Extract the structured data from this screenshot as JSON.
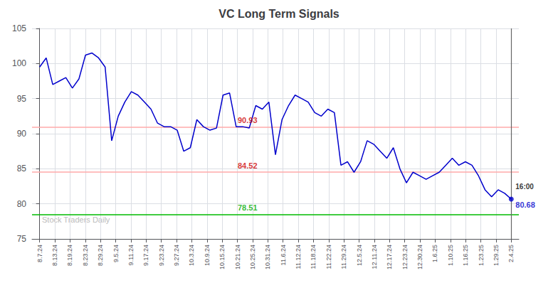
{
  "chart_data": {
    "type": "line",
    "title": "VC Long Term Signals",
    "color": "#0000cc",
    "x": [
      0,
      0.4306,
      0.8611,
      1.2917,
      1.7222,
      2.1528,
      2.5833,
      3.0139,
      3.4444,
      3.875,
      4.3056,
      4.7361,
      5.1667,
      5.5972,
      6.0278,
      6.4583,
      6.8889,
      7.3194,
      7.75,
      8.1806,
      8.6111,
      9.0417,
      9.4722,
      9.9028,
      10.3333,
      10.7639,
      11.1944,
      11.625,
      12.0556,
      12.4861,
      12.9167,
      13.3472,
      13.7778,
      14.2083,
      14.6389,
      15.0694,
      15.5,
      15.9306,
      16.3611,
      16.7917,
      17.2222,
      17.6528,
      18.0833,
      18.5139,
      18.9444,
      19.375,
      19.8056,
      20.2361,
      20.6667,
      21.0972,
      21.5278,
      21.9583,
      22.3889,
      22.8194,
      23.25,
      23.6806,
      24.1111,
      24.5417,
      24.9722,
      25.4028,
      25.8333,
      26.2639,
      26.6944,
      27.125,
      27.5556,
      27.9861,
      28.4167,
      28.8472,
      29.2778,
      29.7083,
      30.1389,
      30.5694,
      31
    ],
    "values": [
      99.5,
      100.8,
      97.0,
      97.5,
      98.0,
      96.5,
      97.8,
      101.2,
      101.5,
      100.8,
      99.5,
      89.0,
      92.5,
      94.5,
      96.0,
      95.5,
      94.5,
      93.5,
      91.5,
      91.0,
      91.0,
      90.5,
      87.5,
      88.0,
      92.0,
      91.0,
      90.5,
      90.8,
      95.5,
      95.8,
      91.0,
      91.0,
      90.8,
      94.0,
      93.5,
      94.5,
      87.0,
      92.0,
      94.0,
      95.5,
      95.0,
      94.5,
      93.0,
      92.5,
      93.5,
      93.0,
      85.5,
      86.0,
      84.5,
      86.0,
      89.0,
      88.5,
      87.5,
      86.5,
      88.0,
      85.0,
      83.0,
      84.5,
      84.0,
      83.5,
      84.0,
      84.5,
      85.5,
      86.5,
      85.5,
      86.0,
      85.5,
      84.0,
      82.0,
      81.0,
      82.0,
      81.5,
      80.68
    ],
    "xlim": [
      -0.5,
      31.5
    ],
    "xticks": [
      {
        "value": 0,
        "label": "8.7.24"
      },
      {
        "value": 1,
        "label": "8.13.24"
      },
      {
        "value": 2,
        "label": "8.19.24"
      },
      {
        "value": 3,
        "label": "8.23.24"
      },
      {
        "value": 4,
        "label": "8.29.24"
      },
      {
        "value": 5,
        "label": "9.5.24"
      },
      {
        "value": 6,
        "label": "9.11.24"
      },
      {
        "value": 7,
        "label": "9.17.24"
      },
      {
        "value": 8,
        "label": "9.23.24"
      },
      {
        "value": 9,
        "label": "9.27.24"
      },
      {
        "value": 10,
        "label": "10.3.24"
      },
      {
        "value": 11,
        "label": "10.9.24"
      },
      {
        "value": 12,
        "label": "10.15.24"
      },
      {
        "value": 13,
        "label": "10.21.24"
      },
      {
        "value": 14,
        "label": "10.25.24"
      },
      {
        "value": 15,
        "label": "10.31.24"
      },
      {
        "value": 16,
        "label": "11.6.24"
      },
      {
        "value": 17,
        "label": "11.12.24"
      },
      {
        "value": 18,
        "label": "11.18.24"
      },
      {
        "value": 19,
        "label": "11.22.24"
      },
      {
        "value": 20,
        "label": "11.29.24"
      },
      {
        "value": 21,
        "label": "12.5.24"
      },
      {
        "value": 22,
        "label": "12.11.24"
      },
      {
        "value": 23,
        "label": "12.17.24"
      },
      {
        "value": 24,
        "label": "12.23.24"
      },
      {
        "value": 25,
        "label": "12.30.24"
      },
      {
        "value": 26,
        "label": "1.6.25"
      },
      {
        "value": 27,
        "label": "1.10.25"
      },
      {
        "value": 28,
        "label": "1.16.25"
      },
      {
        "value": 29,
        "label": "1.23.25"
      },
      {
        "value": 30,
        "label": "1.29.25"
      },
      {
        "value": 31,
        "label": "2.4.25"
      }
    ],
    "ylim": [
      75,
      105
    ],
    "yticks": [
      75,
      80,
      85,
      90,
      95,
      100,
      105
    ],
    "grid": true,
    "hlines": [
      {
        "y": 90.93,
        "color": "#ffaaaa",
        "label": "90.93",
        "label_color": "#cc0000"
      },
      {
        "y": 84.52,
        "color": "#ffaaaa",
        "label": "84.52",
        "label_color": "#cc0000"
      },
      {
        "y": 78.51,
        "color": "#00bb00",
        "label": "78.51",
        "label_color": "#00aa00"
      }
    ],
    "vline": {
      "x": 31,
      "color": "#666666"
    },
    "last_time": "16:00",
    "last_price": {
      "text": "80.68",
      "color": "#0000cc"
    },
    "watermark": {
      "text": "Stock Traders Daily",
      "color": "#bbbbbb"
    }
  }
}
